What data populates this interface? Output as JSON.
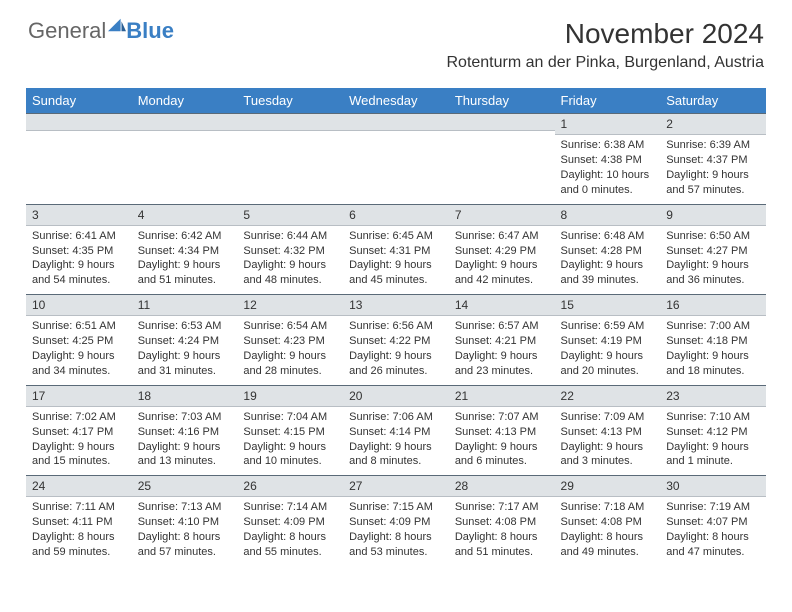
{
  "brand": {
    "part1": "General",
    "part2": "Blue"
  },
  "title": "November 2024",
  "location": "Rotenturm an der Pinka, Burgenland, Austria",
  "colors": {
    "headerBg": "#3a7fc4",
    "dayBarBg": "#dfe3e6",
    "dayBarBorder": "#5a6a78",
    "text": "#333333"
  },
  "dayNames": [
    "Sunday",
    "Monday",
    "Tuesday",
    "Wednesday",
    "Thursday",
    "Friday",
    "Saturday"
  ],
  "weeks": [
    [
      null,
      null,
      null,
      null,
      null,
      {
        "n": "1",
        "sr": "Sunrise: 6:38 AM",
        "ss": "Sunset: 4:38 PM",
        "dl": "Daylight: 10 hours and 0 minutes."
      },
      {
        "n": "2",
        "sr": "Sunrise: 6:39 AM",
        "ss": "Sunset: 4:37 PM",
        "dl": "Daylight: 9 hours and 57 minutes."
      }
    ],
    [
      {
        "n": "3",
        "sr": "Sunrise: 6:41 AM",
        "ss": "Sunset: 4:35 PM",
        "dl": "Daylight: 9 hours and 54 minutes."
      },
      {
        "n": "4",
        "sr": "Sunrise: 6:42 AM",
        "ss": "Sunset: 4:34 PM",
        "dl": "Daylight: 9 hours and 51 minutes."
      },
      {
        "n": "5",
        "sr": "Sunrise: 6:44 AM",
        "ss": "Sunset: 4:32 PM",
        "dl": "Daylight: 9 hours and 48 minutes."
      },
      {
        "n": "6",
        "sr": "Sunrise: 6:45 AM",
        "ss": "Sunset: 4:31 PM",
        "dl": "Daylight: 9 hours and 45 minutes."
      },
      {
        "n": "7",
        "sr": "Sunrise: 6:47 AM",
        "ss": "Sunset: 4:29 PM",
        "dl": "Daylight: 9 hours and 42 minutes."
      },
      {
        "n": "8",
        "sr": "Sunrise: 6:48 AM",
        "ss": "Sunset: 4:28 PM",
        "dl": "Daylight: 9 hours and 39 minutes."
      },
      {
        "n": "9",
        "sr": "Sunrise: 6:50 AM",
        "ss": "Sunset: 4:27 PM",
        "dl": "Daylight: 9 hours and 36 minutes."
      }
    ],
    [
      {
        "n": "10",
        "sr": "Sunrise: 6:51 AM",
        "ss": "Sunset: 4:25 PM",
        "dl": "Daylight: 9 hours and 34 minutes."
      },
      {
        "n": "11",
        "sr": "Sunrise: 6:53 AM",
        "ss": "Sunset: 4:24 PM",
        "dl": "Daylight: 9 hours and 31 minutes."
      },
      {
        "n": "12",
        "sr": "Sunrise: 6:54 AM",
        "ss": "Sunset: 4:23 PM",
        "dl": "Daylight: 9 hours and 28 minutes."
      },
      {
        "n": "13",
        "sr": "Sunrise: 6:56 AM",
        "ss": "Sunset: 4:22 PM",
        "dl": "Daylight: 9 hours and 26 minutes."
      },
      {
        "n": "14",
        "sr": "Sunrise: 6:57 AM",
        "ss": "Sunset: 4:21 PM",
        "dl": "Daylight: 9 hours and 23 minutes."
      },
      {
        "n": "15",
        "sr": "Sunrise: 6:59 AM",
        "ss": "Sunset: 4:19 PM",
        "dl": "Daylight: 9 hours and 20 minutes."
      },
      {
        "n": "16",
        "sr": "Sunrise: 7:00 AM",
        "ss": "Sunset: 4:18 PM",
        "dl": "Daylight: 9 hours and 18 minutes."
      }
    ],
    [
      {
        "n": "17",
        "sr": "Sunrise: 7:02 AM",
        "ss": "Sunset: 4:17 PM",
        "dl": "Daylight: 9 hours and 15 minutes."
      },
      {
        "n": "18",
        "sr": "Sunrise: 7:03 AM",
        "ss": "Sunset: 4:16 PM",
        "dl": "Daylight: 9 hours and 13 minutes."
      },
      {
        "n": "19",
        "sr": "Sunrise: 7:04 AM",
        "ss": "Sunset: 4:15 PM",
        "dl": "Daylight: 9 hours and 10 minutes."
      },
      {
        "n": "20",
        "sr": "Sunrise: 7:06 AM",
        "ss": "Sunset: 4:14 PM",
        "dl": "Daylight: 9 hours and 8 minutes."
      },
      {
        "n": "21",
        "sr": "Sunrise: 7:07 AM",
        "ss": "Sunset: 4:13 PM",
        "dl": "Daylight: 9 hours and 6 minutes."
      },
      {
        "n": "22",
        "sr": "Sunrise: 7:09 AM",
        "ss": "Sunset: 4:13 PM",
        "dl": "Daylight: 9 hours and 3 minutes."
      },
      {
        "n": "23",
        "sr": "Sunrise: 7:10 AM",
        "ss": "Sunset: 4:12 PM",
        "dl": "Daylight: 9 hours and 1 minute."
      }
    ],
    [
      {
        "n": "24",
        "sr": "Sunrise: 7:11 AM",
        "ss": "Sunset: 4:11 PM",
        "dl": "Daylight: 8 hours and 59 minutes."
      },
      {
        "n": "25",
        "sr": "Sunrise: 7:13 AM",
        "ss": "Sunset: 4:10 PM",
        "dl": "Daylight: 8 hours and 57 minutes."
      },
      {
        "n": "26",
        "sr": "Sunrise: 7:14 AM",
        "ss": "Sunset: 4:09 PM",
        "dl": "Daylight: 8 hours and 55 minutes."
      },
      {
        "n": "27",
        "sr": "Sunrise: 7:15 AM",
        "ss": "Sunset: 4:09 PM",
        "dl": "Daylight: 8 hours and 53 minutes."
      },
      {
        "n": "28",
        "sr": "Sunrise: 7:17 AM",
        "ss": "Sunset: 4:08 PM",
        "dl": "Daylight: 8 hours and 51 minutes."
      },
      {
        "n": "29",
        "sr": "Sunrise: 7:18 AM",
        "ss": "Sunset: 4:08 PM",
        "dl": "Daylight: 8 hours and 49 minutes."
      },
      {
        "n": "30",
        "sr": "Sunrise: 7:19 AM",
        "ss": "Sunset: 4:07 PM",
        "dl": "Daylight: 8 hours and 47 minutes."
      }
    ]
  ]
}
